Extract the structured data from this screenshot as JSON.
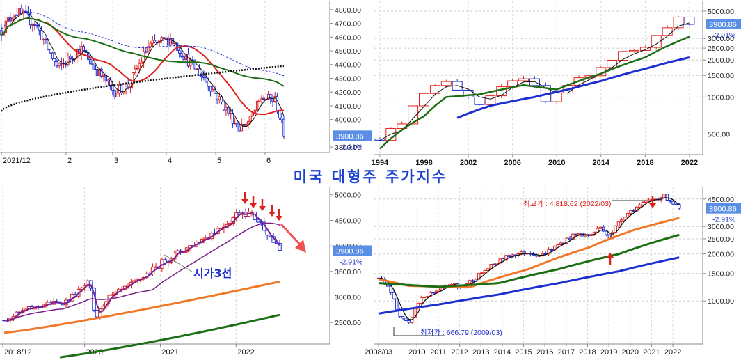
{
  "title": "미국 대형주 주가지수",
  "colors": {
    "up": "#e0201c",
    "down": "#1c2fd0",
    "ma_black": "#111111",
    "ma_red": "#e0201c",
    "ma_green": "#1c6e14",
    "ma_blue": "#1c2fd0",
    "ma_orange": "#f07828",
    "ma_purple": "#7a1e8c",
    "price_box": "#5b8fe6",
    "change_text": "#1c2fd0",
    "annotation_red": "#e0201c",
    "annotation_blue": "#1c2fd0"
  },
  "chart_data": [
    {
      "id": "daily",
      "type": "candlestick",
      "x_ticks": [
        "2021/12",
        "2",
        "3",
        "4",
        "5",
        "6"
      ],
      "y_ticks": [
        "4800.00",
        "4700.00",
        "4600.00",
        "4500.00",
        "4400.00",
        "4300.00",
        "4200.00",
        "4100.00",
        "4000.00",
        "3800.00"
      ],
      "y_tick_values": [
        4800,
        4700,
        4600,
        4500,
        4400,
        4300,
        4200,
        4100,
        4000,
        3800
      ],
      "ylim": [
        3760,
        4860
      ],
      "grid": true,
      "last_price": "3900.86",
      "change": "-2.91%"
    },
    {
      "id": "monthly",
      "type": "candlestick",
      "scale": "log",
      "x_ticks": [
        "1994",
        "1998",
        "2002",
        "2006",
        "2010",
        "2014",
        "2018",
        "2022"
      ],
      "x_tick_values": [
        1994,
        1998,
        2002,
        2006,
        2010,
        2014,
        2018,
        2022
      ],
      "xlim": [
        1993.5,
        2023.2
      ],
      "y_ticks": [
        "5000.00",
        "3000.00",
        "2500.00",
        "2000.00",
        "1500.00",
        "1000.00",
        "500.00"
      ],
      "y_tick_values": [
        5000,
        3000,
        2500,
        2000,
        1500,
        1000,
        500
      ],
      "ylim": [
        340,
        6000
      ],
      "grid": true,
      "last_price": "3900.86",
      "change": "-2.91%"
    },
    {
      "id": "weekly",
      "type": "candlestick",
      "x_ticks": [
        "2018/12",
        "2020",
        "2021",
        "2022"
      ],
      "x_tick_values": [
        2018.92,
        2020.0,
        2021.0,
        2022.0
      ],
      "xlim": [
        2018.92,
        2023.1
      ],
      "y_ticks": [
        "5000.00",
        "4500.00",
        "4000.00",
        "3500.00",
        "3000.00",
        "2500.00"
      ],
      "y_tick_values": [
        5000,
        4500,
        4000,
        3500,
        3000,
        2500
      ],
      "ylim": [
        2080,
        5160
      ],
      "grid": true,
      "last_price": "3900.86",
      "change": "-2.91%",
      "annotation": "시가3선"
    },
    {
      "id": "long_term",
      "type": "candlestick",
      "scale": "log",
      "x_ticks": [
        "2008/03",
        "2010",
        "2011",
        "2012",
        "2013",
        "2014",
        "2015",
        "2016",
        "2017",
        "2018",
        "2019",
        "2020",
        "2021",
        "2022"
      ],
      "x_tick_values": [
        2008.2,
        2010,
        2011,
        2012,
        2013,
        2014,
        2015,
        2016,
        2017,
        2018,
        2019,
        2020,
        2021,
        2022
      ],
      "xlim": [
        2008.0,
        2023.4
      ],
      "y_ticks": [
        "4500.00",
        "3000.00",
        "2500.00",
        "2000.00",
        "1500.00",
        "1000.00"
      ],
      "y_tick_values": [
        4500,
        3000,
        2500,
        2000,
        1500,
        1000
      ],
      "ylim": [
        530,
        5400
      ],
      "grid": true,
      "last_price": "3900.86",
      "change": "-2.91%",
      "high_label": "최고가 : 4,818.62 (2022/03)",
      "low_label": "최저가 : 666.79 (2009/03)"
    }
  ]
}
